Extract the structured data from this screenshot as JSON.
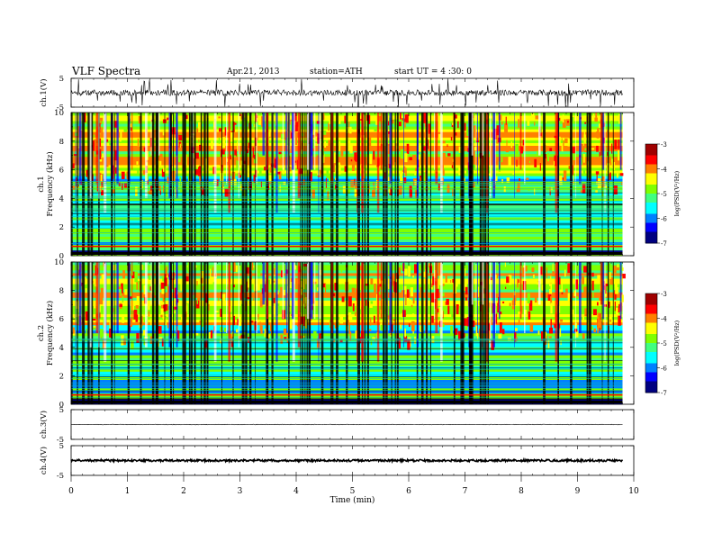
{
  "header": {
    "title": "VLF Spectra",
    "date": "Apr.21, 2013",
    "station": "station=ATH",
    "start": "start UT = 4 :30: 0"
  },
  "colors": {
    "spectrogram_scale": [
      "#000080",
      "#0000ff",
      "#0080ff",
      "#00ffff",
      "#40ff80",
      "#80ff00",
      "#ffff00",
      "#ff8000",
      "#ff0000",
      "#a00000",
      "#ffffff"
    ]
  },
  "chart_data": [
    {
      "type": "line",
      "title": "",
      "ylabel": "ch.1(V)",
      "ylim": [
        -5,
        5
      ],
      "yticks": [
        "5",
        "-5"
      ],
      "description_values": {
        "baseline_v": 0,
        "noise_amplitude_v": 1.0,
        "spike_amplitude_v": 4.5
      }
    },
    {
      "type": "heatmap",
      "channel_label": "ch.1",
      "ylabel": "Frequency  (kHz)",
      "ylim": [
        0,
        10
      ],
      "yticks": [
        "0",
        "2",
        "4",
        "6",
        "8",
        "10"
      ],
      "colorbar": {
        "label": "log(PSD(V²/Hz)",
        "range": [
          -7,
          -3
        ],
        "ticks": [
          "-3",
          "-4",
          "-5",
          "-6",
          "-7"
        ]
      }
    },
    {
      "type": "heatmap",
      "channel_label": "ch.2",
      "ylabel": "Frequency  (kHz)",
      "ylim": [
        0,
        10
      ],
      "yticks": [
        "0",
        "2",
        "4",
        "6",
        "8",
        "10"
      ],
      "colorbar": {
        "label": "log(PSD(V²/Hz)",
        "range": [
          -7,
          -3
        ],
        "ticks": [
          "-3",
          "-4",
          "-5",
          "-6",
          "-7"
        ]
      }
    },
    {
      "type": "line",
      "ylabel": "ch.3(V)",
      "ylim": [
        -5,
        5
      ],
      "yticks": [
        "5",
        "-5"
      ],
      "description_values": {
        "baseline_v": 0,
        "noise_amplitude_v": 0.1
      }
    },
    {
      "type": "line",
      "ylabel": "ch.4(V)",
      "ylim": [
        -5,
        5
      ],
      "yticks": [
        "5",
        "-5"
      ],
      "description_values": {
        "baseline_v": 0,
        "noise_amplitude_v": 0.3
      }
    }
  ],
  "xaxis": {
    "label": "Time  (min)",
    "xlim": [
      0,
      10
    ],
    "ticks": [
      "0",
      "1",
      "2",
      "3",
      "4",
      "5",
      "6",
      "7",
      "8",
      "9",
      "10"
    ],
    "data_end_min": 9.8
  }
}
